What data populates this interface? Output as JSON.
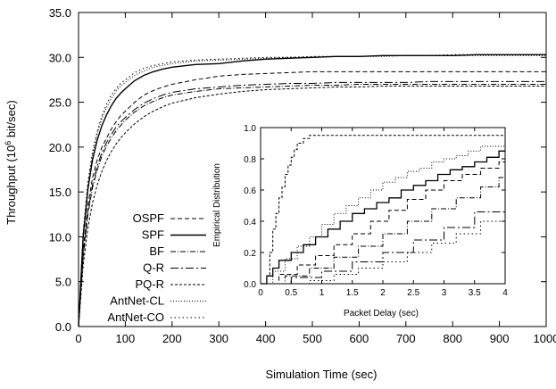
{
  "chart_data": [
    {
      "type": "line",
      "xlabel": "Simulation Time (sec)",
      "ylabel_main": "Throughput (10",
      "ylabel_sup": "6",
      "ylabel_tail": " bit/sec)",
      "xlim": [
        0,
        1000
      ],
      "ylim": [
        0,
        35
      ],
      "grid": false,
      "legend_position": "center-left",
      "x_ticks": [
        "0",
        "100",
        "200",
        "300",
        "400",
        "500",
        "600",
        "700",
        "800",
        "900",
        "1000"
      ],
      "y_ticks": [
        "0.0",
        "5.0",
        "10.0",
        "15.0",
        "20.0",
        "25.0",
        "30.0",
        "35.0"
      ],
      "x": [
        0,
        10,
        20,
        30,
        40,
        50,
        60,
        70,
        80,
        90,
        100,
        120,
        140,
        160,
        180,
        200,
        250,
        300,
        350,
        400,
        450,
        500,
        550,
        600,
        650,
        700,
        750,
        800,
        850,
        900,
        950,
        1000
      ],
      "series": [
        {
          "name": "OSPF",
          "style": "dashed",
          "values": [
            0,
            8.5,
            13.5,
            16.6,
            18.6,
            20.0,
            21.0,
            22.0,
            22.8,
            23.5,
            24.0,
            25.0,
            25.8,
            26.3,
            26.7,
            27.0,
            27.5,
            27.9,
            28.1,
            28.2,
            28.3,
            28.4,
            28.4,
            28.4,
            28.4,
            28.4,
            28.4,
            28.4,
            28.4,
            28.4,
            28.4,
            28.4
          ]
        },
        {
          "name": "SPF",
          "style": "solid",
          "values": [
            0,
            10.0,
            15.3,
            18.6,
            20.8,
            22.4,
            23.6,
            24.6,
            25.4,
            26.0,
            26.5,
            27.4,
            28.0,
            28.4,
            28.7,
            28.9,
            29.2,
            29.3,
            29.6,
            29.8,
            29.9,
            30.0,
            30.1,
            30.1,
            30.2,
            30.2,
            30.2,
            30.2,
            30.3,
            30.3,
            30.3,
            30.3
          ]
        },
        {
          "name": "BF",
          "style": "dash-dot",
          "values": [
            0,
            7.8,
            12.5,
            15.5,
            17.5,
            19.0,
            20.1,
            21.0,
            21.8,
            22.4,
            23.0,
            23.9,
            24.6,
            25.1,
            25.5,
            25.8,
            26.2,
            26.5,
            26.6,
            26.7,
            26.8,
            26.9,
            26.9,
            27.0,
            27.0,
            27.0,
            27.0,
            27.0,
            27.0,
            27.0,
            27.0,
            27.0
          ]
        },
        {
          "name": "Q-R",
          "style": "long-dash-dot",
          "values": [
            0,
            8.0,
            12.8,
            15.8,
            17.9,
            19.4,
            20.5,
            21.4,
            22.2,
            22.8,
            23.3,
            24.2,
            24.9,
            25.4,
            25.8,
            26.1,
            26.5,
            26.7,
            26.9,
            27.0,
            27.1,
            27.1,
            27.2,
            27.2,
            27.2,
            27.2,
            27.3,
            27.3,
            27.3,
            27.3,
            27.3,
            27.3
          ]
        },
        {
          "name": "PQ-R",
          "style": "fine-dashed",
          "values": [
            0,
            6.8,
            11.0,
            13.8,
            15.8,
            17.3,
            18.5,
            19.5,
            20.3,
            21.0,
            21.6,
            22.6,
            23.4,
            24.0,
            24.5,
            24.9,
            25.5,
            25.9,
            26.2,
            26.4,
            26.5,
            26.6,
            26.7,
            26.7,
            26.8,
            26.8,
            26.8,
            26.8,
            26.8,
            26.8,
            26.8,
            26.8
          ]
        },
        {
          "name": "AntNet-CL",
          "style": "dotted",
          "values": [
            0,
            10.4,
            15.8,
            19.2,
            21.5,
            23.2,
            24.4,
            25.4,
            26.2,
            26.8,
            27.2,
            28.0,
            28.5,
            28.9,
            29.1,
            29.3,
            29.6,
            29.7,
            29.8,
            29.9,
            30.0,
            30.0,
            30.1,
            30.1,
            30.1,
            30.2,
            30.2,
            30.2,
            30.2,
            30.2,
            30.2,
            30.2
          ]
        },
        {
          "name": "AntNet-CO",
          "style": "dotted-sparse",
          "values": [
            0,
            10.6,
            16.1,
            19.5,
            21.8,
            23.5,
            24.8,
            25.8,
            26.5,
            27.1,
            27.5,
            28.3,
            28.8,
            29.1,
            29.3,
            29.5,
            29.7,
            29.8,
            29.9,
            30.0,
            30.0,
            30.1,
            30.1,
            30.1,
            30.2,
            30.2,
            30.2,
            30.3,
            30.3,
            30.3,
            30.3,
            30.3
          ]
        }
      ]
    },
    {
      "type": "line",
      "subtype": "step",
      "xlabel": "Packet Delay (sec)",
      "ylabel": "Empirical Distribution",
      "xlim": [
        0,
        4
      ],
      "ylim": [
        0,
        1
      ],
      "grid": false,
      "x_ticks": [
        "0",
        "0.5",
        "1",
        "1.5",
        "2",
        "2.5",
        "3",
        "3.5",
        "4"
      ],
      "y_ticks": [
        "0.0",
        "0.2",
        "0.4",
        "0.6",
        "0.8",
        "1.0"
      ],
      "series": [
        {
          "style": "fine-dashed",
          "x": [
            0,
            0.1,
            0.15,
            0.2,
            0.25,
            0.3,
            0.35,
            0.4,
            0.45,
            0.5,
            0.55,
            0.6,
            0.7,
            0.8,
            4.0
          ],
          "y": [
            0,
            0.05,
            0.2,
            0.35,
            0.45,
            0.55,
            0.62,
            0.7,
            0.76,
            0.81,
            0.86,
            0.9,
            0.93,
            0.95,
            0.95
          ]
        },
        {
          "style": "dotted",
          "x": [
            0,
            0.2,
            0.4,
            0.6,
            0.8,
            1.0,
            1.2,
            1.4,
            1.6,
            1.8,
            2.0,
            2.2,
            2.4,
            2.6,
            2.8,
            3.0,
            3.2,
            3.4,
            3.6,
            4.0
          ],
          "y": [
            0,
            0.08,
            0.16,
            0.24,
            0.3,
            0.38,
            0.45,
            0.5,
            0.55,
            0.6,
            0.65,
            0.68,
            0.72,
            0.74,
            0.78,
            0.8,
            0.82,
            0.85,
            0.88,
            0.9
          ]
        },
        {
          "style": "solid",
          "x": [
            0,
            0.1,
            0.2,
            0.3,
            0.5,
            0.7,
            0.9,
            1.1,
            1.3,
            1.5,
            1.7,
            1.9,
            2.1,
            2.3,
            2.5,
            2.7,
            2.9,
            3.1,
            3.3,
            3.5,
            3.7,
            3.9,
            4.0
          ],
          "y": [
            0,
            0.05,
            0.1,
            0.15,
            0.2,
            0.25,
            0.3,
            0.35,
            0.4,
            0.45,
            0.48,
            0.52,
            0.55,
            0.6,
            0.63,
            0.66,
            0.7,
            0.73,
            0.75,
            0.78,
            0.81,
            0.85,
            0.85
          ]
        },
        {
          "style": "dashed",
          "x": [
            0,
            0.3,
            0.6,
            0.9,
            1.2,
            1.5,
            1.8,
            2.1,
            2.4,
            2.7,
            3.0,
            3.3,
            3.6,
            3.9,
            4.0
          ],
          "y": [
            0,
            0.06,
            0.12,
            0.18,
            0.25,
            0.32,
            0.4,
            0.47,
            0.54,
            0.6,
            0.66,
            0.7,
            0.74,
            0.78,
            0.8
          ]
        },
        {
          "style": "dash-dot",
          "x": [
            0,
            0.4,
            0.8,
            1.2,
            1.6,
            2.0,
            2.4,
            2.8,
            3.2,
            3.6,
            3.9,
            4.0
          ],
          "y": [
            0,
            0.05,
            0.1,
            0.17,
            0.24,
            0.32,
            0.4,
            0.48,
            0.55,
            0.62,
            0.68,
            0.7
          ]
        },
        {
          "style": "long-dash-dot",
          "x": [
            0,
            0.5,
            1.0,
            1.5,
            2.0,
            2.5,
            3.0,
            3.5,
            4.0
          ],
          "y": [
            0,
            0.04,
            0.08,
            0.14,
            0.2,
            0.28,
            0.36,
            0.46,
            0.55
          ]
        },
        {
          "style": "dotted-sparse",
          "x": [
            0,
            0.8,
            1.2,
            1.6,
            2.0,
            2.4,
            2.8,
            3.2,
            3.6,
            4.0
          ],
          "y": [
            0,
            0.02,
            0.06,
            0.1,
            0.14,
            0.2,
            0.26,
            0.32,
            0.4,
            0.45
          ]
        }
      ]
    }
  ]
}
